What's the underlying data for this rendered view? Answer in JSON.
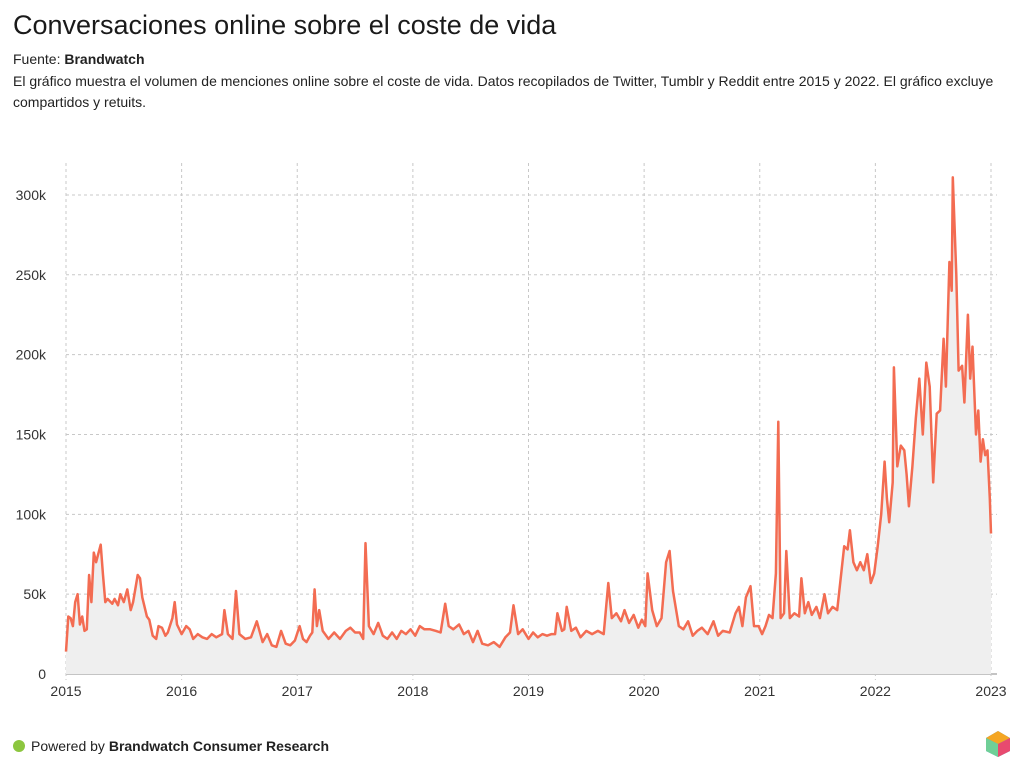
{
  "chart_data": {
    "type": "line",
    "title": "Conversaciones online sobre el coste de vida",
    "source_label": "Fuente:",
    "source": "Brandwatch",
    "description": "El gráfico muestra el volumen de menciones online sobre el coste de vida. Datos recopilados de Twitter, Tumblr y Reddit entre 2015 y 2022. El gráfico excluye compartidos y retuits.",
    "footer_label": "Powered by",
    "footer_brand": "Brandwatch Consumer Research",
    "xlim": [
      2015,
      2023
    ],
    "xticks": [
      2015,
      2016,
      2017,
      2018,
      2019,
      2020,
      2021,
      2022,
      2023
    ],
    "ylim": [
      0,
      320000
    ],
    "yticks": [
      0,
      {
        "value": 50000,
        "label": "50k"
      },
      {
        "value": 100000,
        "label": "100k"
      },
      {
        "value": 150000,
        "label": "150k"
      },
      {
        "value": 200000,
        "label": "200k"
      },
      {
        "value": 250000,
        "label": "250k"
      },
      {
        "value": 300000,
        "label": "300k"
      }
    ],
    "grid": true,
    "series": [
      {
        "color": "#f36c52",
        "x": [
          2015.0,
          2015.02,
          2015.04,
          2015.06,
          2015.08,
          2015.1,
          2015.12,
          2015.14,
          2015.16,
          2015.18,
          2015.2,
          2015.22,
          2015.24,
          2015.26,
          2015.3,
          2015.32,
          2015.34,
          2015.36,
          2015.4,
          2015.42,
          2015.45,
          2015.47,
          2015.5,
          2015.53,
          2015.56,
          2015.58,
          2015.62,
          2015.64,
          2015.66,
          2015.7,
          2015.72,
          2015.75,
          2015.78,
          2015.8,
          2015.83,
          2015.86,
          2015.88,
          2015.92,
          2015.94,
          2015.96,
          2016.0,
          2016.04,
          2016.07,
          2016.1,
          2016.14,
          2016.18,
          2016.22,
          2016.26,
          2016.3,
          2016.35,
          2016.37,
          2016.4,
          2016.44,
          2016.47,
          2016.5,
          2016.55,
          2016.6,
          2016.65,
          2016.7,
          2016.74,
          2016.78,
          2016.82,
          2016.86,
          2016.9,
          2016.94,
          2016.98,
          2017.02,
          2017.05,
          2017.08,
          2017.11,
          2017.13,
          2017.15,
          2017.17,
          2017.19,
          2017.22,
          2017.27,
          2017.32,
          2017.37,
          2017.42,
          2017.46,
          2017.5,
          2017.54,
          2017.57,
          2017.59,
          2017.62,
          2017.66,
          2017.7,
          2017.74,
          2017.78,
          2017.82,
          2017.86,
          2017.9,
          2017.94,
          2017.98,
          2018.02,
          2018.06,
          2018.1,
          2018.15,
          2018.2,
          2018.24,
          2018.28,
          2018.31,
          2018.35,
          2018.4,
          2018.44,
          2018.48,
          2018.52,
          2018.56,
          2018.6,
          2018.65,
          2018.7,
          2018.75,
          2018.8,
          2018.84,
          2018.87,
          2018.91,
          2018.95,
          2019.0,
          2019.04,
          2019.08,
          2019.12,
          2019.16,
          2019.2,
          2019.23,
          2019.25,
          2019.29,
          2019.31,
          2019.33,
          2019.37,
          2019.41,
          2019.45,
          2019.5,
          2019.55,
          2019.6,
          2019.65,
          2019.69,
          2019.72,
          2019.76,
          2019.8,
          2019.83,
          2019.87,
          2019.91,
          2019.95,
          2019.98,
          2020.01,
          2020.03,
          2020.07,
          2020.11,
          2020.15,
          2020.19,
          2020.22,
          2020.25,
          2020.3,
          2020.34,
          2020.38,
          2020.42,
          2020.46,
          2020.5,
          2020.55,
          2020.6,
          2020.64,
          2020.68,
          2020.74,
          2020.79,
          2020.82,
          2020.85,
          2020.88,
          2020.92,
          2020.95,
          2020.99,
          2021.02,
          2021.05,
          2021.08,
          2021.11,
          2021.14,
          2021.16,
          2021.18,
          2021.21,
          2021.23,
          2021.26,
          2021.3,
          2021.34,
          2021.36,
          2021.39,
          2021.42,
          2021.45,
          2021.49,
          2021.52,
          2021.56,
          2021.59,
          2021.63,
          2021.67,
          2021.7,
          2021.73,
          2021.76,
          2021.78,
          2021.81,
          2021.84,
          2021.87,
          2021.9,
          2021.93,
          2021.96,
          2021.99,
          2022.02,
          2022.05,
          2022.08,
          2022.1,
          2022.12,
          2022.15,
          2022.16,
          2022.19,
          2022.22,
          2022.25,
          2022.27,
          2022.29,
          2022.32,
          2022.35,
          2022.38,
          2022.41,
          2022.44,
          2022.47,
          2022.5,
          2022.53,
          2022.56,
          2022.59,
          2022.61,
          2022.64,
          2022.66,
          2022.67,
          2022.7,
          2022.72,
          2022.75,
          2022.77,
          2022.8,
          2022.82,
          2022.84,
          2022.87,
          2022.89,
          2022.91,
          2022.93,
          2022.95,
          2022.97,
          2022.99,
          2023.0
        ],
        "values": [
          14000,
          36000,
          35000,
          30000,
          45000,
          50000,
          31000,
          36000,
          27000,
          28000,
          62000,
          45000,
          76000,
          70000,
          81000,
          62000,
          45000,
          47000,
          44000,
          47000,
          43000,
          50000,
          45000,
          53000,
          40000,
          45000,
          62000,
          60000,
          48000,
          36000,
          34000,
          24000,
          22000,
          30000,
          29000,
          24000,
          26000,
          35000,
          45000,
          31000,
          25000,
          30000,
          28000,
          22000,
          25000,
          23000,
          22000,
          25000,
          23000,
          25000,
          40000,
          25000,
          22000,
          52000,
          25000,
          22000,
          23000,
          33000,
          20000,
          25000,
          18000,
          17000,
          27000,
          19000,
          18000,
          21000,
          30000,
          22000,
          20000,
          24000,
          26000,
          53000,
          30000,
          40000,
          27000,
          22000,
          26000,
          22000,
          27000,
          29000,
          26000,
          26000,
          22000,
          82000,
          30000,
          25000,
          32000,
          24000,
          22000,
          26000,
          22000,
          27000,
          25000,
          28000,
          24000,
          30000,
          28000,
          28000,
          27000,
          26000,
          44000,
          30000,
          28000,
          31000,
          25000,
          27000,
          20000,
          27000,
          19000,
          18000,
          20000,
          17000,
          23000,
          26000,
          43000,
          25000,
          28000,
          22000,
          26000,
          23000,
          25000,
          24000,
          25000,
          25000,
          38000,
          27000,
          28000,
          42000,
          27000,
          29000,
          23000,
          27000,
          25000,
          27000,
          25000,
          57000,
          35000,
          38000,
          33000,
          40000,
          32000,
          37000,
          29000,
          34000,
          30000,
          63000,
          40000,
          30000,
          35000,
          70000,
          77000,
          52000,
          30000,
          28000,
          33000,
          24000,
          27000,
          29000,
          25000,
          33000,
          24000,
          27000,
          26000,
          38000,
          42000,
          30000,
          48000,
          55000,
          30000,
          30000,
          25000,
          30000,
          37000,
          35000,
          63000,
          158000,
          35000,
          38000,
          77000,
          35000,
          38000,
          36000,
          60000,
          38000,
          45000,
          37000,
          42000,
          35000,
          50000,
          38000,
          42000,
          40000,
          60000,
          80000,
          78000,
          90000,
          70000,
          65000,
          70000,
          65000,
          75000,
          57000,
          63000,
          80000,
          100000,
          133000,
          110000,
          95000,
          120000,
          192000,
          130000,
          143000,
          140000,
          125000,
          105000,
          130000,
          160000,
          185000,
          150000,
          195000,
          180000,
          120000,
          163000,
          165000,
          210000,
          180000,
          258000,
          240000,
          311000,
          250000,
          190000,
          193000,
          170000,
          225000,
          185000,
          205000,
          150000,
          165000,
          133000,
          147000,
          137000,
          140000,
          110000,
          88000
        ]
      }
    ]
  }
}
